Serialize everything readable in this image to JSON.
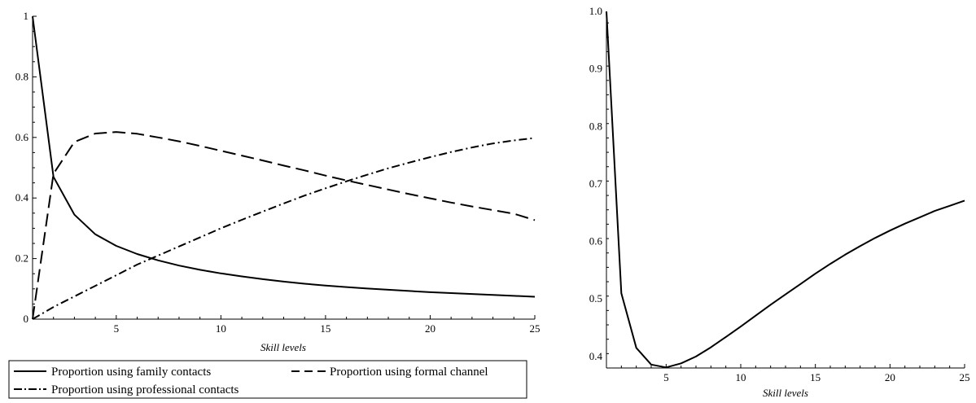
{
  "chart_data": [
    {
      "type": "line",
      "title": "",
      "xlabel": "Skill levels",
      "ylabel": "",
      "xlim": [
        1,
        25
      ],
      "ylim": [
        0,
        1
      ],
      "xticks": [
        5,
        10,
        15,
        20,
        25
      ],
      "yticks": [
        0,
        0.2,
        0.4,
        0.6,
        0.8,
        1
      ],
      "ytick_labels": [
        "0",
        "0.2",
        "0.4",
        "0.6",
        "0.8",
        "1"
      ],
      "legend_position": "bottom",
      "grid": false,
      "series": [
        {
          "name": "Proportion using family contacts",
          "style": "solid",
          "x": [
            1,
            2,
            3,
            4,
            5,
            6,
            7,
            8,
            9,
            10,
            11,
            12,
            13,
            14,
            15,
            16,
            17,
            18,
            19,
            20,
            21,
            22,
            23,
            24,
            25
          ],
          "y": [
            1.0,
            0.47,
            0.345,
            0.28,
            0.242,
            0.215,
            0.194,
            0.177,
            0.163,
            0.151,
            0.141,
            0.132,
            0.124,
            0.117,
            0.111,
            0.106,
            0.101,
            0.097,
            0.093,
            0.089,
            0.086,
            0.083,
            0.08,
            0.077,
            0.074
          ]
        },
        {
          "name": "Proportion using formal channel",
          "style": "dashed",
          "x": [
            1,
            2,
            3,
            4,
            5,
            6,
            7,
            8,
            9,
            10,
            11,
            12,
            13,
            14,
            15,
            16,
            17,
            18,
            19,
            20,
            21,
            22,
            23,
            24,
            25
          ],
          "y": [
            0.0,
            0.48,
            0.585,
            0.613,
            0.618,
            0.612,
            0.6,
            0.587,
            0.572,
            0.556,
            0.54,
            0.524,
            0.507,
            0.491,
            0.474,
            0.458,
            0.443,
            0.428,
            0.413,
            0.399,
            0.385,
            0.372,
            0.36,
            0.348,
            0.327
          ]
        },
        {
          "name": "Proportion using professional contacts",
          "style": "dashdot",
          "x": [
            1,
            2,
            3,
            4,
            5,
            6,
            7,
            8,
            9,
            10,
            11,
            12,
            13,
            14,
            15,
            16,
            17,
            18,
            19,
            20,
            21,
            22,
            23,
            24,
            25
          ],
          "y": [
            0.0,
            0.04,
            0.075,
            0.11,
            0.145,
            0.18,
            0.21,
            0.24,
            0.27,
            0.3,
            0.328,
            0.355,
            0.382,
            0.408,
            0.432,
            0.455,
            0.477,
            0.498,
            0.517,
            0.535,
            0.552,
            0.567,
            0.58,
            0.59,
            0.598
          ]
        }
      ]
    },
    {
      "type": "line",
      "title": "",
      "xlabel": "Skill levels",
      "ylabel": "",
      "xlim": [
        1,
        25
      ],
      "ylim": [
        0.38,
        1.0
      ],
      "xticks": [
        5,
        10,
        15,
        20,
        25
      ],
      "yticks": [
        0.4,
        0.5,
        0.6,
        0.7,
        0.8,
        0.9,
        1.0
      ],
      "ytick_labels": [
        "0.4",
        "0.5",
        "0.6",
        "0.7",
        "0.8",
        "0.9",
        "1.0"
      ],
      "grid": false,
      "series": [
        {
          "style": "solid",
          "x": [
            1,
            2,
            3,
            4,
            5,
            6,
            7,
            8,
            9,
            10,
            11,
            12,
            13,
            14,
            15,
            16,
            17,
            18,
            19,
            20,
            21,
            22,
            23,
            24,
            25
          ],
          "y": [
            1.0,
            0.51,
            0.415,
            0.386,
            0.381,
            0.388,
            0.4,
            0.416,
            0.434,
            0.452,
            0.471,
            0.49,
            0.508,
            0.526,
            0.544,
            0.561,
            0.577,
            0.592,
            0.606,
            0.619,
            0.631,
            0.642,
            0.653,
            0.662,
            0.671
          ]
        }
      ]
    }
  ]
}
